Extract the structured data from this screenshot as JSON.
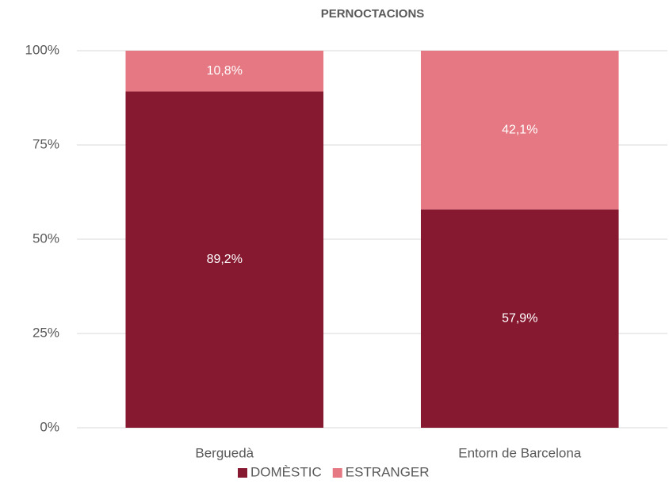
{
  "chart_data": {
    "type": "stacked_bar",
    "title": "PERNOCTACIONS",
    "categories": [
      "Berguedà",
      "Entorn de Barcelona"
    ],
    "series": [
      {
        "name": "DOMÈSTIC",
        "color": "#861930",
        "values": [
          89.2,
          57.9
        ],
        "value_labels": [
          "89,2%",
          "57,9%"
        ]
      },
      {
        "name": "ESTRANGER",
        "color": "#e57882",
        "values": [
          10.8,
          42.1
        ],
        "value_labels": [
          "10,8%",
          "42,1%"
        ]
      }
    ],
    "ylim": [
      0,
      100
    ],
    "yticks": [
      {
        "value": 0,
        "label": "0%"
      },
      {
        "value": 25,
        "label": "25%"
      },
      {
        "value": 50,
        "label": "50%"
      },
      {
        "value": 75,
        "label": "75%"
      },
      {
        "value": 100,
        "label": "100%"
      }
    ],
    "grid": true,
    "legend": "bottom"
  }
}
